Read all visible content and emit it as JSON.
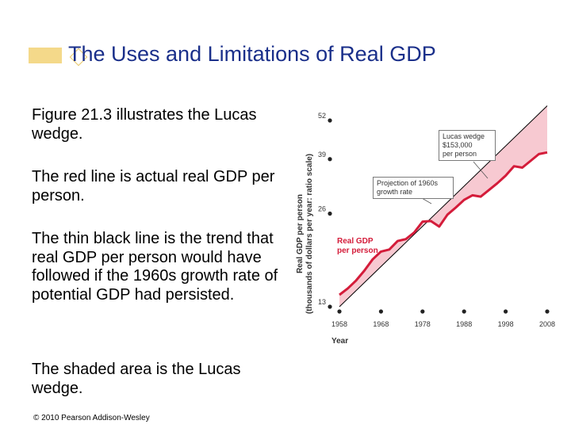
{
  "slide": {
    "title": "The Uses and Limitations of Real GDP",
    "paragraphs": [
      "Figure 21.3 illustrates the Lucas wedge.",
      "The red line is actual real GDP per person.",
      "The thin black line is the trend that real GDP per person would have followed if the 1960s growth rate of potential GDP had persisted.",
      "The shaded area is the Lucas wedge."
    ],
    "copyright": "© 2010 Pearson Addison-Wesley"
  },
  "colors": {
    "title": "#1a2f8a",
    "accent_bar": "#f4d98a",
    "actual_line": "#d41c3a",
    "wedge_fill": "#f7c9d1",
    "trend_line": "#000000"
  },
  "chart_data": {
    "type": "line",
    "xlabel": "Year",
    "ylabel": "Real GDP per person (thousands of dollars per year: ratio scale)",
    "y_scale": "log",
    "xlim": [
      1958,
      2008
    ],
    "ylim": [
      13,
      52
    ],
    "x_ticks": [
      1958,
      1968,
      1978,
      1988,
      1998,
      2008
    ],
    "y_ticks": [
      13,
      26,
      39,
      52
    ],
    "series": [
      {
        "name": "Real GDP per person",
        "x": [
          1958,
          1960,
          1962,
          1964,
          1966,
          1968,
          1970,
          1972,
          1974,
          1976,
          1978,
          1980,
          1982,
          1984,
          1986,
          1988,
          1990,
          1992,
          1994,
          1996,
          1998,
          2000,
          2002,
          2004,
          2006,
          2008
        ],
        "values": [
          14.2,
          14.9,
          15.8,
          17.0,
          18.5,
          19.6,
          19.9,
          21.2,
          21.5,
          22.6,
          24.5,
          24.6,
          23.6,
          25.8,
          27.2,
          28.8,
          29.8,
          29.5,
          31.0,
          32.6,
          34.5,
          37.0,
          36.6,
          38.5,
          40.5,
          41.0
        ]
      },
      {
        "name": "Projection of 1960s growth rate",
        "x": [
          1958,
          2008
        ],
        "values": [
          13.0,
          58.0
        ]
      }
    ],
    "annotations": {
      "lucas_wedge_lines": [
        "Lucas wedge",
        "$153,000",
        "per person"
      ],
      "projection_lines": [
        "Projection of 1960s",
        "growth rate"
      ],
      "actual_lines": [
        "Real GDP",
        "per person"
      ]
    }
  }
}
